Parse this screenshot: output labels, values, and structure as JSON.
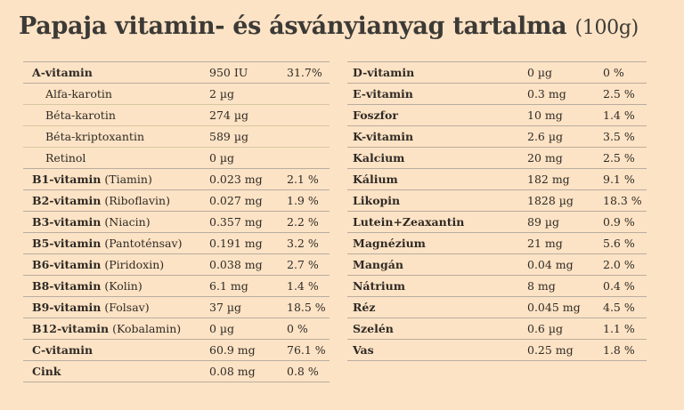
{
  "title": {
    "main": "Papaja vitamin- és ásványianyag tartalma",
    "unit": "(100g)"
  },
  "left": [
    {
      "name": "A-vitamin",
      "paren": "",
      "amount": "950 IU",
      "pct": "31.7%",
      "sub": false
    },
    {
      "name": "Alfa-karotin",
      "paren": "",
      "amount": "2 µg",
      "pct": "",
      "sub": true
    },
    {
      "name": "Béta-karotin",
      "paren": "",
      "amount": "274 µg",
      "pct": "",
      "sub": true
    },
    {
      "name": "Béta-kriptoxantin",
      "paren": "",
      "amount": "589 µg",
      "pct": "",
      "sub": true
    },
    {
      "name": "Retinol",
      "paren": "",
      "amount": "0 µg",
      "pct": "",
      "sub": true,
      "last": true
    },
    {
      "name": "B1-vitamin",
      "paren": "(Tiamin)",
      "amount": "0.023 mg",
      "pct": "2.1 %",
      "sub": false
    },
    {
      "name": "B2-vitamin",
      "paren": "(Riboflavin)",
      "amount": "0.027 mg",
      "pct": "1.9 %",
      "sub": false
    },
    {
      "name": "B3-vitamin",
      "paren": "(Niacin)",
      "amount": "0.357 mg",
      "pct": "2.2 %",
      "sub": false
    },
    {
      "name": "B5-vitamin",
      "paren": "(Pantoténsav)",
      "amount": "0.191 mg",
      "pct": "3.2 %",
      "sub": false
    },
    {
      "name": "B6-vitamin",
      "paren": "(Piridoxin)",
      "amount": "0.038 mg",
      "pct": "2.7 %",
      "sub": false
    },
    {
      "name": "B8-vitamin",
      "paren": "(Kolin)",
      "amount": "6.1 mg",
      "pct": "1.4 %",
      "sub": false
    },
    {
      "name": "B9-vitamin",
      "paren": "(Folsav)",
      "amount": "37 µg",
      "pct": "18.5 %",
      "sub": false
    },
    {
      "name": "B12-vitamin",
      "paren": "(Kobalamin)",
      "amount": "0 µg",
      "pct": "0 %",
      "sub": false
    },
    {
      "name": "C-vitamin",
      "paren": "",
      "amount": "60.9 mg",
      "pct": "76.1 %",
      "sub": false
    },
    {
      "name": "Cink",
      "paren": "",
      "amount": "0.08 mg",
      "pct": "0.8 %",
      "sub": false
    }
  ],
  "right": [
    {
      "name": "D-vitamin",
      "amount": "0 µg",
      "pct": "0 %"
    },
    {
      "name": "E-vitamin",
      "amount": "0.3 mg",
      "pct": "2.5 %"
    },
    {
      "name": "Foszfor",
      "amount": "10 mg",
      "pct": "1.4 %"
    },
    {
      "name": "K-vitamin",
      "amount": "2.6 µg",
      "pct": "3.5 %"
    },
    {
      "name": "Kalcium",
      "amount": "20 mg",
      "pct": "2.5 %"
    },
    {
      "name": "Kálium",
      "amount": "182 mg",
      "pct": "9.1 %"
    },
    {
      "name": "Likopin",
      "amount": "1828 µg",
      "pct": "18.3 %"
    },
    {
      "name": "Lutein+Zeaxantin",
      "amount": "89 µg",
      "pct": "0.9 %"
    },
    {
      "name": "Magnézium",
      "amount": "21 mg",
      "pct": "5.6 %"
    },
    {
      "name": "Mangán",
      "amount": "0.04 mg",
      "pct": "2.0 %"
    },
    {
      "name": "Nátrium",
      "amount": "8 mg",
      "pct": "0.4 %"
    },
    {
      "name": "Réz",
      "amount": "0.045 mg",
      "pct": "4.5 %"
    },
    {
      "name": "Szelén",
      "amount": "0.6 µg",
      "pct": "1.1 %"
    },
    {
      "name": "Vas",
      "amount": "0.25 mg",
      "pct": "1.8 %"
    }
  ],
  "colors": {
    "background": "#fde3c5",
    "title": "#3c3a36",
    "rule": "#b7ad9f",
    "subrule": "#d6c79f"
  }
}
